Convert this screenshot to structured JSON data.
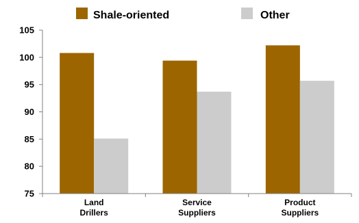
{
  "chart_data": {
    "type": "bar",
    "categories": [
      [
        "Land",
        "Drillers"
      ],
      [
        "Service",
        "Suppliers"
      ],
      [
        "Product",
        "Suppliers"
      ]
    ],
    "series": [
      {
        "name": "Shale-oriented",
        "color": "#9C6500",
        "values": [
          100.8,
          99.4,
          102.2
        ]
      },
      {
        "name": "Other",
        "color": "#CCCCCC",
        "values": [
          85.1,
          93.7,
          95.7
        ]
      }
    ],
    "yticks": [
      "75",
      "80",
      "85",
      "90",
      "95",
      "100",
      "105"
    ],
    "ylim": [
      75,
      105
    ],
    "grid": false,
    "legend_position": "top"
  }
}
